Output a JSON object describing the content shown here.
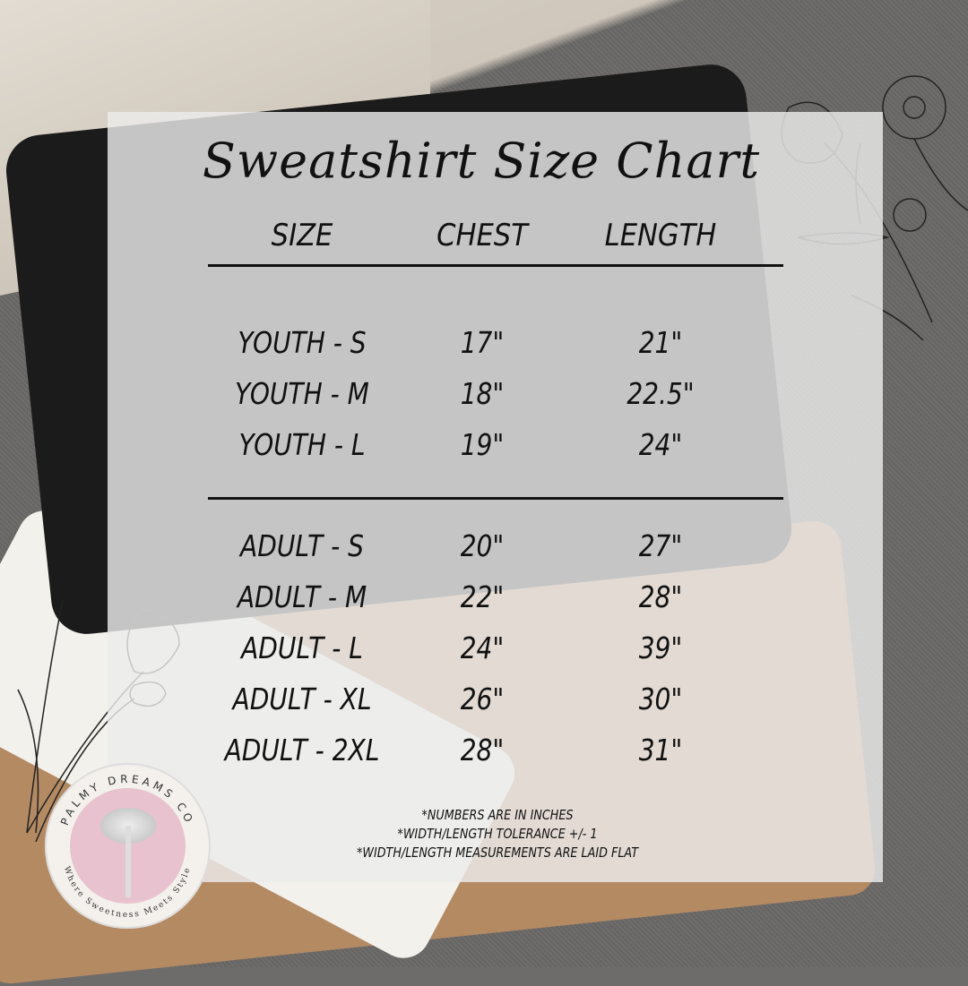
{
  "title": "Sweatshirt Size Chart",
  "headers": [
    "SIZE",
    "CHEST",
    "LENGTH"
  ],
  "youth": [
    {
      "size": "YOUTH - S",
      "chest": "17\"",
      "length": "21\""
    },
    {
      "size": "YOUTH - M",
      "chest": "18\"",
      "length": "22.5\""
    },
    {
      "size": "YOUTH - L",
      "chest": "19\"",
      "length": "24\""
    }
  ],
  "adult": [
    {
      "size": "ADULT - S",
      "chest": "20\"",
      "length": "27\""
    },
    {
      "size": "ADULT - M",
      "chest": "22\"",
      "length": "28\""
    },
    {
      "size": "ADULT - L",
      "chest": "24\"",
      "length": "39\""
    },
    {
      "size": "ADULT - XL",
      "chest": "26\"",
      "length": "30\""
    },
    {
      "size": "ADULT - 2XL",
      "chest": "28\"",
      "length": "31\""
    }
  ],
  "notes": [
    "*NUMBERS ARE IN INCHES",
    "*WIDTH/LENGTH TOLERANCE +/- 1",
    "*WIDTH/LENGTH MEASUREMENTS ARE LAID FLAT"
  ],
  "logo": {
    "name": "PALMY DREAMS CO",
    "tagline": "Where Sweetness Meets Style"
  },
  "colors": {
    "panel": "#ececec",
    "text": "#111111",
    "logo_pink": "#e8c3cf"
  }
}
